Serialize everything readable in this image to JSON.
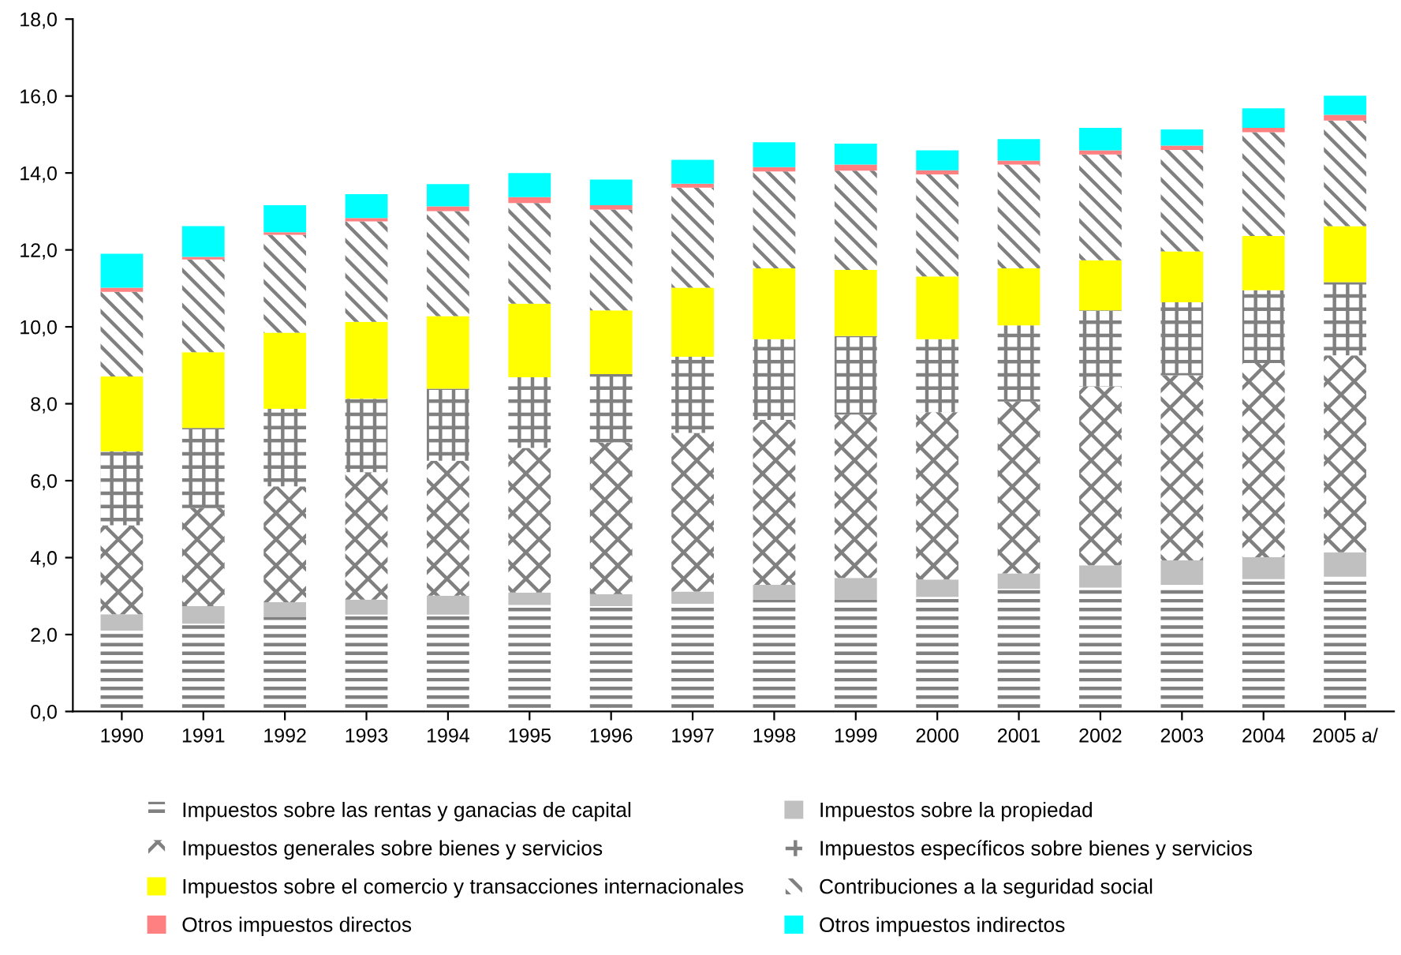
{
  "chart_data": {
    "type": "bar",
    "stacked": true,
    "categories": [
      "1990",
      "1991",
      "1992",
      "1993",
      "1994",
      "1995",
      "1996",
      "1997",
      "1998",
      "1999",
      "2000",
      "2001",
      "2002",
      "2003",
      "2004",
      "2005 a/"
    ],
    "series": [
      {
        "name": "Impuestos sobre las rentas y ganacias de capital",
        "color": "#808080",
        "values": [
          2.1,
          2.28,
          2.46,
          2.52,
          2.52,
          2.77,
          2.74,
          2.8,
          2.91,
          2.91,
          2.98,
          3.19,
          3.22,
          3.3,
          3.44,
          3.5
        ]
      },
      {
        "name": "Impuestos sobre la propiedad",
        "color": "#c0c0c0",
        "values": [
          0.43,
          0.46,
          0.38,
          0.39,
          0.49,
          0.32,
          0.31,
          0.32,
          0.38,
          0.56,
          0.45,
          0.4,
          0.58,
          0.63,
          0.57,
          0.64
        ]
      },
      {
        "name": "Impuestos generales sobre bienes y servicios",
        "color": "#808080",
        "values": [
          2.31,
          2.55,
          3.01,
          3.31,
          3.51,
          3.76,
          3.94,
          4.12,
          4.29,
          4.25,
          4.35,
          4.47,
          4.65,
          4.81,
          5.05,
          5.12
        ]
      },
      {
        "name": "Impuestos específicos sobre bienes y servicios",
        "color": "#808080",
        "values": [
          1.92,
          2.08,
          2.02,
          1.91,
          1.87,
          1.84,
          1.78,
          1.98,
          2.1,
          2.04,
          1.9,
          1.98,
          1.98,
          1.9,
          1.89,
          1.9
        ]
      },
      {
        "name": "Impuestos sobre el comercio y transacciones internacionales",
        "color": "#ffff00",
        "values": [
          1.95,
          1.97,
          1.98,
          2.0,
          1.89,
          1.91,
          1.66,
          1.8,
          1.84,
          1.72,
          1.63,
          1.48,
          1.3,
          1.32,
          1.41,
          1.46
        ]
      },
      {
        "name": "Contribuciones a la seguridad social",
        "color": "#808080",
        "values": [
          2.2,
          2.41,
          2.54,
          2.61,
          2.73,
          2.62,
          2.62,
          2.6,
          2.52,
          2.58,
          2.65,
          2.7,
          2.75,
          2.64,
          2.7,
          2.74
        ]
      },
      {
        "name": "Otros impuestos directos",
        "color": "#ff8080",
        "values": [
          0.11,
          0.07,
          0.07,
          0.09,
          0.12,
          0.15,
          0.11,
          0.1,
          0.11,
          0.16,
          0.11,
          0.1,
          0.11,
          0.11,
          0.11,
          0.15
        ]
      },
      {
        "name": "Otros impuestos indirectos",
        "color": "#00ffff",
        "values": [
          0.88,
          0.8,
          0.7,
          0.62,
          0.58,
          0.63,
          0.67,
          0.62,
          0.65,
          0.54,
          0.52,
          0.56,
          0.58,
          0.42,
          0.51,
          0.5
        ]
      }
    ],
    "ylim": [
      0,
      18
    ],
    "yticks": [
      {
        "value": 0,
        "label": "0,0"
      },
      {
        "value": 2,
        "label": "2,0"
      },
      {
        "value": 4,
        "label": "4,0"
      },
      {
        "value": 6,
        "label": "6,0"
      },
      {
        "value": 8,
        "label": "8,0"
      },
      {
        "value": 10,
        "label": "10,0"
      },
      {
        "value": 12,
        "label": "12,0"
      },
      {
        "value": 14,
        "label": "14,0"
      },
      {
        "value": 16,
        "label": "16,0"
      },
      {
        "value": 18,
        "label": "18,0"
      }
    ],
    "grid": false,
    "legend": "bottom"
  }
}
